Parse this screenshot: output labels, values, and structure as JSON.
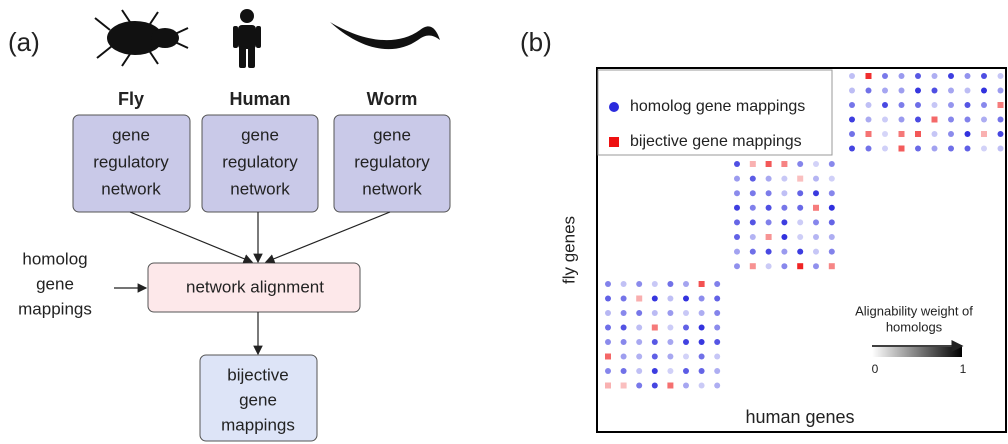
{
  "panel_a": {
    "label": "(a)",
    "species": [
      {
        "name": "Fly",
        "box_lines": [
          "gene",
          "regulatory",
          "network"
        ]
      },
      {
        "name": "Human",
        "box_lines": [
          "gene",
          "regulatory",
          "network"
        ]
      },
      {
        "name": "Worm",
        "box_lines": [
          "gene",
          "regulatory",
          "network"
        ]
      }
    ],
    "input_lines": [
      "homolog",
      "gene",
      "mappings"
    ],
    "alignment_box": "network alignment",
    "output_lines": [
      "bijective",
      "gene",
      "mappings"
    ]
  },
  "panel_b": {
    "label": "(b)",
    "legend": [
      "homolog gene mappings",
      "bijective gene mappings"
    ],
    "y_axis_label": "fly genes",
    "x_axis_label": "human genes",
    "colorbar": {
      "title_lines": [
        "Alignability weight of",
        "homologs"
      ],
      "min_label": "0",
      "max_label": "1"
    }
  }
}
